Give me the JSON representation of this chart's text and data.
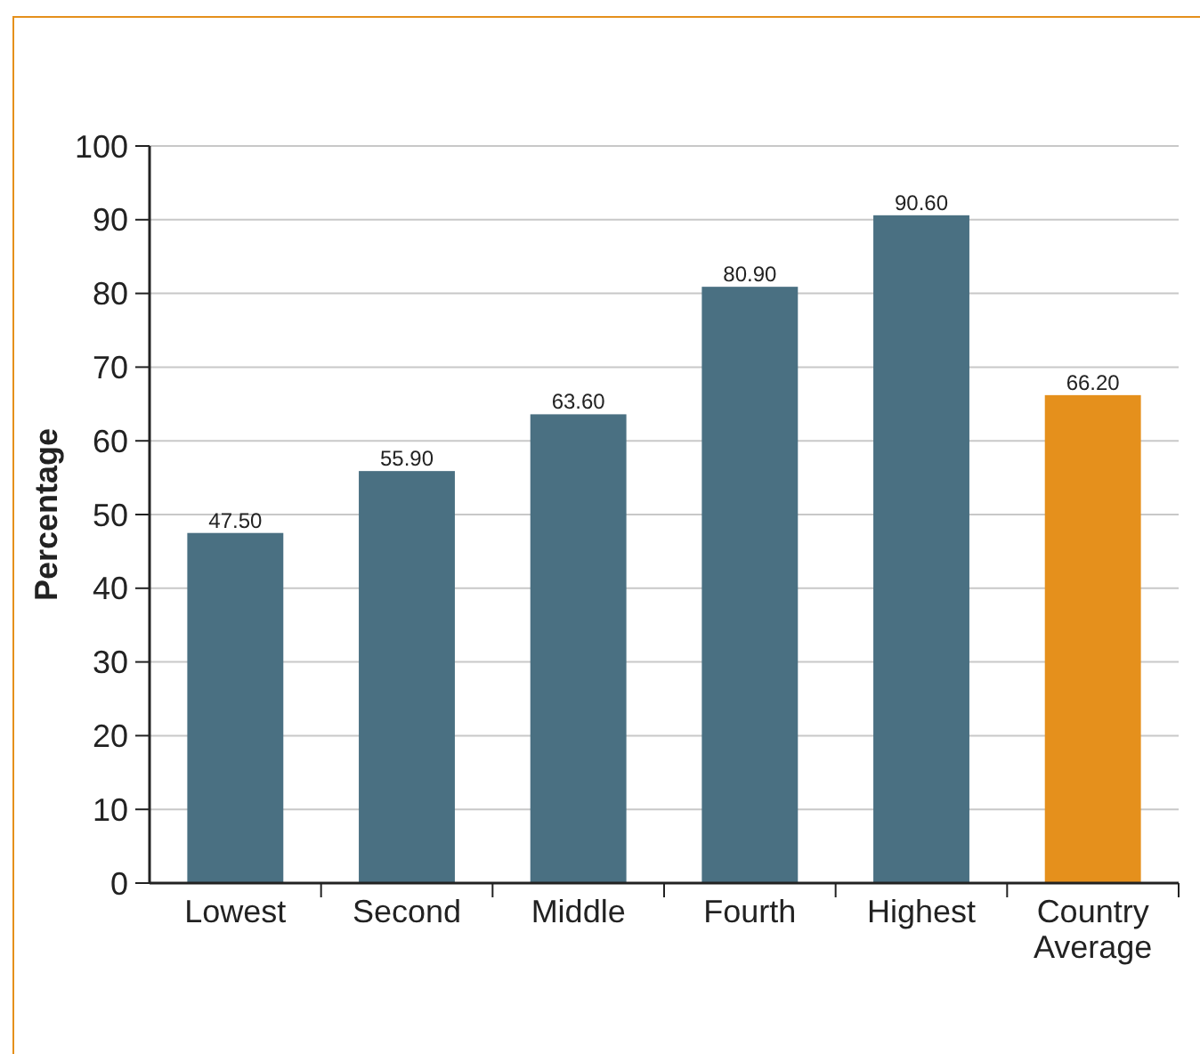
{
  "chart_data": {
    "type": "bar",
    "ylabel": "Percentage",
    "categories": [
      "Lowest",
      "Second",
      "Middle",
      "Fourth",
      "Highest",
      "Country Average"
    ],
    "values": [
      47.5,
      55.9,
      63.6,
      80.9,
      90.6,
      66.2
    ],
    "colors": [
      "#4a7082",
      "#4a7082",
      "#4a7082",
      "#4a7082",
      "#4a7082",
      "#e5901c"
    ],
    "value_labels": [
      "47.50",
      "55.90",
      "63.60",
      "80.90",
      "90.60",
      "66.20"
    ],
    "ylim": [
      0,
      100
    ],
    "yticks": [
      0,
      10,
      20,
      30,
      40,
      50,
      60,
      70,
      80,
      90,
      100
    ],
    "grid": "y"
  }
}
